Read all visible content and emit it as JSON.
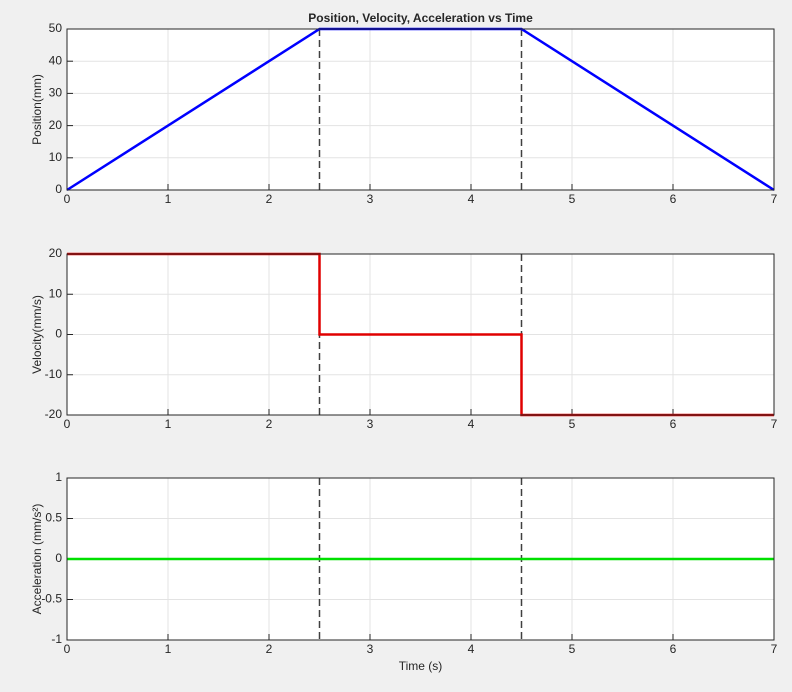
{
  "chart_data": [
    {
      "type": "line",
      "title": "Position, Velocity, Acceleration vs Time",
      "ylabel": "Position(mm)",
      "x": [
        0,
        2.5,
        4.5,
        7
      ],
      "series": [
        {
          "name": "Position",
          "color": "#0000ff",
          "values": [
            0,
            50,
            50,
            0
          ]
        }
      ],
      "vlines": [
        2.5,
        4.5
      ],
      "xlim": [
        0,
        7
      ],
      "ylim": [
        0,
        50
      ],
      "xticks": [
        0,
        1,
        2,
        3,
        4,
        5,
        6,
        7
      ],
      "yticks": [
        0,
        10,
        20,
        30,
        40,
        50
      ],
      "grid": true
    },
    {
      "type": "line",
      "ylabel": "Velocity(mm/s)",
      "x": [
        0,
        2.5,
        2.5,
        4.5,
        4.5,
        7
      ],
      "series": [
        {
          "name": "Velocity",
          "color": "#e00000",
          "values": [
            20,
            20,
            0,
            0,
            -20,
            -20
          ]
        }
      ],
      "vlines": [
        2.5,
        4.5
      ],
      "xlim": [
        0,
        7
      ],
      "ylim": [
        -20,
        20
      ],
      "xticks": [
        0,
        1,
        2,
        3,
        4,
        5,
        6,
        7
      ],
      "yticks": [
        -20,
        -10,
        0,
        10,
        20
      ],
      "grid": true
    },
    {
      "type": "line",
      "ylabel": "Acceleration (mm/s²)",
      "xlabel": "Time (s)",
      "x": [
        0,
        7
      ],
      "series": [
        {
          "name": "Acceleration",
          "color": "#00e000",
          "values": [
            0,
            0
          ]
        }
      ],
      "vlines": [
        2.5,
        4.5
      ],
      "xlim": [
        0,
        7
      ],
      "ylim": [
        -1,
        1
      ],
      "xticks": [
        0,
        1,
        2,
        3,
        4,
        5,
        6,
        7
      ],
      "yticks": [
        -1,
        -0.5,
        0,
        0.5,
        1
      ],
      "grid": true
    }
  ]
}
